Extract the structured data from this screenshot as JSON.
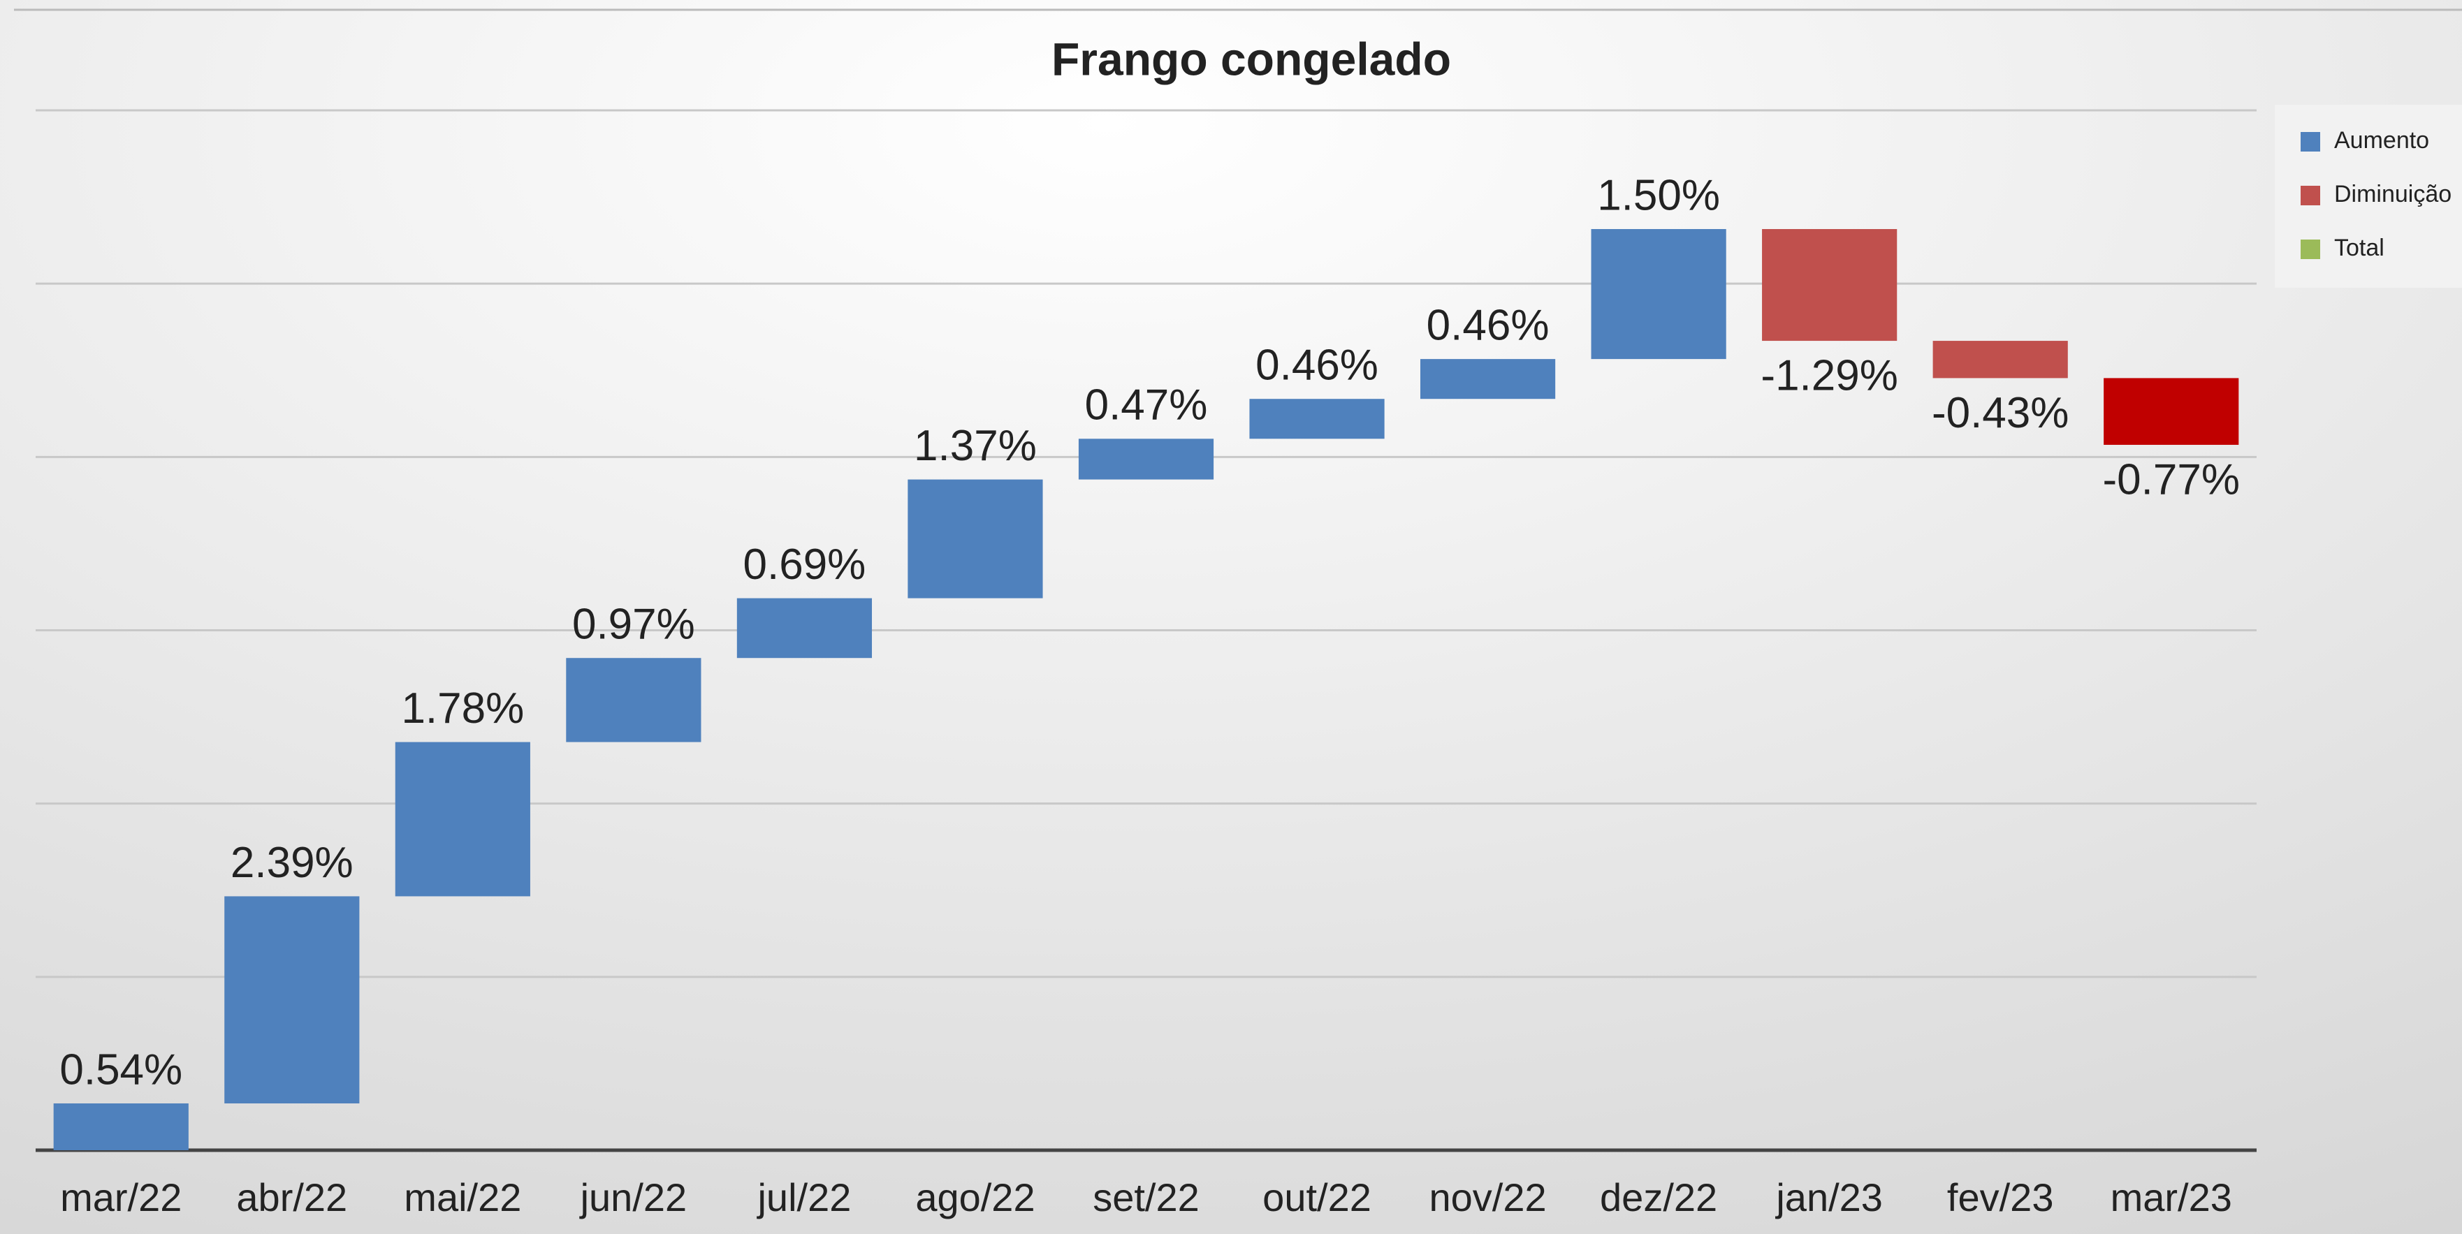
{
  "chart_data": {
    "type": "waterfall",
    "title": "Frango congelado",
    "categories": [
      "mar/22",
      "abr/22",
      "mai/22",
      "jun/22",
      "jul/22",
      "ago/22",
      "set/22",
      "out/22",
      "nov/22",
      "dez/22",
      "jan/23",
      "fev/23",
      "mar/23"
    ],
    "values": [
      0.54,
      2.39,
      1.78,
      0.97,
      0.69,
      1.37,
      0.47,
      0.46,
      0.46,
      1.5,
      -1.29,
      -0.43,
      -0.77
    ],
    "value_labels": [
      "0.54%",
      "2.39%",
      "1.78%",
      "0.97%",
      "0.69%",
      "1.37%",
      "0.47%",
      "0.46%",
      "0.46%",
      "1.50%",
      "-1.29%",
      "-0.43%",
      "-0.77%"
    ],
    "colors": [
      "#4f81bd",
      "#4f81bd",
      "#4f81bd",
      "#4f81bd",
      "#4f81bd",
      "#4f81bd",
      "#4f81bd",
      "#4f81bd",
      "#4f81bd",
      "#4f81bd",
      "#c0504d",
      "#c0504d",
      "#c00000"
    ],
    "legend": [
      {
        "name": "Aumento",
        "color": "#4f81bd"
      },
      {
        "name": "Diminuição",
        "color": "#c0504d"
      },
      {
        "name": "Total",
        "color": "#9bbb59"
      }
    ],
    "ylim": [
      0,
      12
    ],
    "yticks": [
      0,
      2,
      4,
      6,
      8,
      10,
      12
    ],
    "grid": true
  }
}
